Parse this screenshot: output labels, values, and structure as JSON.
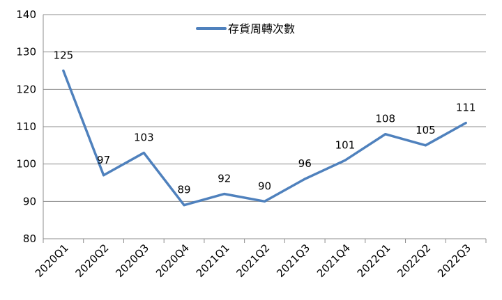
{
  "chart_data": {
    "type": "line",
    "categories": [
      "2020Q1",
      "2020Q2",
      "2020Q3",
      "2020Q4",
      "2021Q1",
      "2021Q2",
      "2021Q3",
      "2021Q4",
      "2022Q1",
      "2022Q2",
      "2022Q3"
    ],
    "series": [
      {
        "name": "存貨周轉次數",
        "values": [
          125,
          97,
          103,
          89,
          92,
          90,
          96,
          101,
          108,
          105,
          111
        ],
        "labels": [
          "125",
          "97",
          "103",
          "89",
          "92",
          "90",
          "96",
          "101",
          "108",
          "105",
          "111"
        ],
        "color": "#4f81bd"
      }
    ],
    "ylim": [
      80,
      140
    ],
    "yticks": [
      80,
      90,
      100,
      110,
      120,
      130,
      140
    ],
    "ytick_labels": [
      "80",
      "90",
      "100",
      "110",
      "120",
      "130",
      "140"
    ],
    "grid": "horizontal",
    "legend_position": "top"
  }
}
